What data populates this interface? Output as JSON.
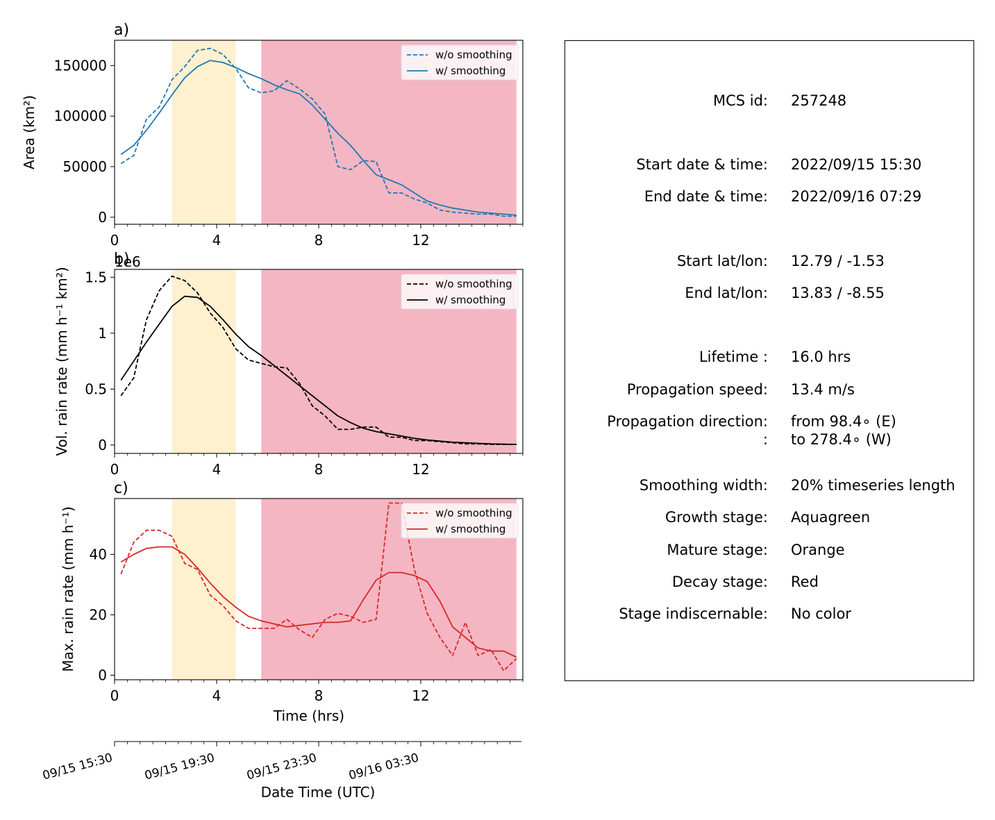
{
  "colors": {
    "growth": "#fff0cf",
    "mature_unused": "#fce9c8",
    "decay": "#f4b6c2",
    "area": "#1f77b4",
    "volrain": "#000000",
    "maxrain": "#d62728"
  },
  "chart_data": [
    {
      "type": "line",
      "panel_label": "a)",
      "ylabel": "Area  (km²)",
      "xlabel": "",
      "xlim": [
        0,
        16
      ],
      "ylim": [
        -7000,
        175000
      ],
      "xticks": [
        0,
        4,
        8,
        12
      ],
      "yticks": [
        0,
        50000,
        100000,
        150000
      ],
      "legend": "top-right",
      "stage_shading": [
        {
          "stage": "mature",
          "color": "orange",
          "x": [
            2.25,
            4.75
          ]
        },
        {
          "stage": "decay",
          "color": "red",
          "x": [
            5.75,
            15.75
          ]
        }
      ],
      "x": [
        0.25,
        0.75,
        1.25,
        1.75,
        2.25,
        2.75,
        3.25,
        3.75,
        4.25,
        4.75,
        5.25,
        5.75,
        6.25,
        6.75,
        7.25,
        7.75,
        8.25,
        8.75,
        9.25,
        9.75,
        10.25,
        10.75,
        11.25,
        11.75,
        12.25,
        12.75,
        13.25,
        13.75,
        14.25,
        14.75,
        15.25,
        15.75
      ],
      "series": [
        {
          "name": "w/o smoothing",
          "style": "dashed",
          "values": [
            53000,
            61000,
            97000,
            109000,
            136000,
            149000,
            165000,
            167000,
            161000,
            147000,
            128000,
            123000,
            125000,
            135000,
            127000,
            117000,
            102000,
            50000,
            47000,
            56000,
            55000,
            24000,
            24000,
            18000,
            14000,
            7000,
            5000,
            4000,
            3000,
            3000,
            1000,
            1000
          ]
        },
        {
          "name": "w/ smoothing",
          "style": "solid",
          "x": [
            0.25,
            0.75,
            1.25,
            1.75,
            2.25,
            2.75,
            3.25,
            3.75,
            4.25,
            4.75,
            5.25,
            5.75,
            6.25,
            6.75,
            7.25,
            7.75,
            8.25,
            8.75,
            9.25,
            9.75,
            10.25,
            10.75,
            11.25,
            11.75,
            12.25,
            12.75,
            13.25,
            13.75,
            14.25,
            14.75,
            15.25,
            15.75
          ],
          "values": [
            62000,
            71000,
            86000,
            103000,
            121000,
            138000,
            149000,
            155000,
            153000,
            148000,
            142000,
            137000,
            131000,
            126000,
            122000,
            111000,
            97000,
            83000,
            71000,
            56000,
            42000,
            37000,
            32000,
            24000,
            16000,
            12000,
            9000,
            7000,
            5000,
            4000,
            3000,
            2000
          ]
        }
      ]
    },
    {
      "type": "line",
      "panel_label": "b)",
      "offset_label": "1e6",
      "ylabel": "Vol. rain rate (mm h⁻¹ km²)",
      "xlabel": "",
      "xlim": [
        0,
        16
      ],
      "ylim": [
        -0.075,
        1.57
      ],
      "xticks": [
        0,
        4,
        8,
        12
      ],
      "yticks": [
        0.0,
        0.5,
        1.0,
        1.5
      ],
      "legend": "top-right",
      "stage_shading": [
        {
          "stage": "mature",
          "color": "orange",
          "x": [
            2.25,
            4.75
          ]
        },
        {
          "stage": "decay",
          "color": "red",
          "x": [
            5.75,
            15.75
          ]
        }
      ],
      "x": [
        0.25,
        0.75,
        1.25,
        1.75,
        2.25,
        2.75,
        3.25,
        3.75,
        4.25,
        4.75,
        5.25,
        5.75,
        6.25,
        6.75,
        7.25,
        7.75,
        8.25,
        8.75,
        9.25,
        9.75,
        10.25,
        10.75,
        11.25,
        11.75,
        12.25,
        12.75,
        13.25,
        13.75,
        14.25,
        14.75,
        15.25,
        15.75
      ],
      "series": [
        {
          "name": "w/o smoothing",
          "style": "dashed",
          "values": [
            0.44,
            0.6,
            1.12,
            1.38,
            1.51,
            1.47,
            1.36,
            1.18,
            1.05,
            0.86,
            0.76,
            0.73,
            0.7,
            0.69,
            0.55,
            0.35,
            0.26,
            0.14,
            0.14,
            0.16,
            0.16,
            0.07,
            0.07,
            0.04,
            0.04,
            0.03,
            0.02,
            0.01,
            0.01,
            0.005,
            0.005,
            0.005
          ]
        },
        {
          "name": "w/ smoothing",
          "style": "solid",
          "values": [
            0.58,
            0.75,
            0.92,
            1.08,
            1.24,
            1.33,
            1.32,
            1.24,
            1.12,
            0.99,
            0.88,
            0.8,
            0.71,
            0.62,
            0.53,
            0.44,
            0.35,
            0.26,
            0.2,
            0.15,
            0.12,
            0.1,
            0.08,
            0.06,
            0.045,
            0.035,
            0.025,
            0.02,
            0.015,
            0.01,
            0.008,
            0.005
          ]
        }
      ]
    },
    {
      "type": "line",
      "panel_label": "c)",
      "ylabel": "Max. rain rate  (mm h⁻¹)",
      "xlabel": "Time (hrs)",
      "xlim": [
        0,
        16
      ],
      "ylim": [
        -1.5,
        58.5
      ],
      "xticks": [
        0,
        4,
        8,
        12
      ],
      "yticks": [
        0,
        20,
        40
      ],
      "legend": "top-right",
      "stage_shading": [
        {
          "stage": "mature",
          "color": "orange",
          "x": [
            2.25,
            4.75
          ]
        },
        {
          "stage": "decay",
          "color": "red",
          "x": [
            5.75,
            15.75
          ]
        }
      ],
      "x": [
        0.25,
        0.75,
        1.25,
        1.75,
        2.25,
        2.75,
        3.25,
        3.75,
        4.25,
        4.75,
        5.25,
        5.75,
        6.25,
        6.75,
        7.25,
        7.75,
        8.25,
        8.75,
        9.25,
        9.75,
        10.25,
        10.75,
        11.25,
        11.75,
        12.25,
        12.75,
        13.25,
        13.75,
        14.25,
        14.75,
        15.25,
        15.75
      ],
      "series": [
        {
          "name": "w/o smoothing",
          "style": "dashed",
          "values": [
            33.5,
            44,
            48,
            48,
            46,
            37,
            35,
            26.5,
            23,
            18,
            15.5,
            15.5,
            15.5,
            18.5,
            15,
            12.5,
            18.5,
            20.5,
            19.5,
            17.5,
            18.5,
            57,
            57,
            35,
            20.5,
            12.5,
            6.5,
            17.5,
            6.5,
            8.5,
            1.5,
            5.5
          ]
        },
        {
          "name": "w/ smoothing",
          "style": "solid",
          "values": [
            37.5,
            40,
            42,
            42.5,
            42.5,
            40,
            35.5,
            30.5,
            26,
            22.5,
            19.5,
            18,
            17,
            16,
            16.5,
            17,
            17.5,
            17.5,
            18,
            25,
            31.5,
            34,
            34,
            33,
            31,
            24.5,
            16,
            12.5,
            9,
            8,
            8,
            6
          ]
        }
      ]
    }
  ],
  "datetime_axis": {
    "label": "Date Time (UTC)",
    "tick_labels": [
      "09/15 15:30",
      "09/15 19:30",
      "09/15 23:30",
      "09/16 03:30"
    ],
    "tick_hours": [
      0,
      4,
      8,
      12
    ]
  },
  "info_box": {
    "rows": [
      {
        "label": "MCS id:",
        "value": "257248"
      },
      {
        "label": "Start date & time:",
        "value": "2022/09/15 15:30"
      },
      {
        "label": "End date & time:",
        "value": "2022/09/16 07:29"
      },
      {
        "label": "Start lat/lon:",
        "value": "12.79 / -1.53"
      },
      {
        "label": "End lat/lon:",
        "value": "13.83 / -8.55"
      },
      {
        "label": "Lifetime :",
        "value": "16.0 hrs"
      },
      {
        "label": "Propagation speed:",
        "value": "13.4 m/s"
      },
      {
        "label": "Propagation direction:",
        "value": "from  98.4∘ (E)"
      },
      {
        "label": ":",
        "value": "to   278.4∘ (W)"
      },
      {
        "label": "Smoothing width:",
        "value": "20% timeseries length"
      },
      {
        "label": "Growth stage:",
        "value": "Aquagreen"
      },
      {
        "label": "Mature stage:",
        "value": "Orange"
      },
      {
        "label": "Decay stage:",
        "value": "Red"
      },
      {
        "label": "Stage indiscernable:",
        "value": "No color"
      }
    ]
  }
}
